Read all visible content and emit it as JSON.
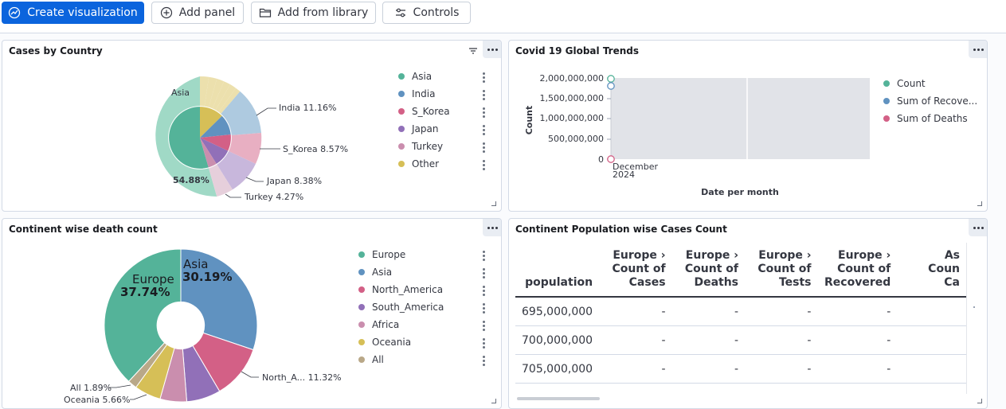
{
  "toolbar": {
    "create_label": "Create visualization",
    "add_panel_label": "Add panel",
    "add_library_label": "Add from library",
    "controls_label": "Controls"
  },
  "panels": {
    "cases_by_country": {
      "title": "Cases by Country",
      "center_label": "Asia",
      "center_pct": "54.88%",
      "callouts": {
        "india": "India  11.16%",
        "skorea": "S_Korea  8.57%",
        "japan": "Japan  8.38%",
        "turkey": "Turkey  4.27%"
      },
      "legend": [
        {
          "label": "Asia",
          "color": "#54b399"
        },
        {
          "label": "India",
          "color": "#6092c0"
        },
        {
          "label": "S_Korea",
          "color": "#d36086"
        },
        {
          "label": "Japan",
          "color": "#9170b8"
        },
        {
          "label": "Turkey",
          "color": "#ca8eae"
        },
        {
          "label": "Other",
          "color": "#d6bf57"
        }
      ]
    },
    "covid_trends": {
      "title": "Covid 19 Global Trends",
      "ylabel": "Count",
      "xlabel": "Date per month",
      "yticks": [
        "2,000,000,000",
        "1,500,000,000",
        "1,000,000,000",
        "500,000,000",
        "0"
      ],
      "xtick_line1": "December",
      "xtick_line2": "2024",
      "legend": [
        {
          "label": "Count",
          "color": "#54b399"
        },
        {
          "label": "Sum of Recove...",
          "color": "#6092c0"
        },
        {
          "label": "Sum of Deaths",
          "color": "#d36086"
        }
      ]
    },
    "continent_deaths": {
      "title": "Continent wise death count",
      "europe_label": "Europe",
      "europe_pct": "37.74%",
      "asia_label": "Asia",
      "asia_pct": "30.19%",
      "callouts": {
        "north_america": "North_A...  11.32%",
        "all": "All  1.89%",
        "oceania": "Oceania  5.66%"
      },
      "legend": [
        {
          "label": "Europe",
          "color": "#54b399"
        },
        {
          "label": "Asia",
          "color": "#6092c0"
        },
        {
          "label": "North_America",
          "color": "#d36086"
        },
        {
          "label": "South_America",
          "color": "#9170b8"
        },
        {
          "label": "Africa",
          "color": "#ca8eae"
        },
        {
          "label": "Oceania",
          "color": "#d6bf57"
        },
        {
          "label": "All",
          "color": "#b9a888"
        }
      ]
    },
    "population_table": {
      "title": "Continent Population wise Cases Count",
      "headers": [
        {
          "l1": "",
          "l2": "",
          "l3": "population"
        },
        {
          "l1": "Europe ›",
          "l2": "Count of",
          "l3": "Cases"
        },
        {
          "l1": "Europe ›",
          "l2": "Count of",
          "l3": "Deaths"
        },
        {
          "l1": "Europe ›",
          "l2": "Count of",
          "l3": "Tests"
        },
        {
          "l1": "Europe ›",
          "l2": "Count of",
          "l3": "Recovered"
        },
        {
          "l1": "As",
          "l2": "Coun",
          "l3": "Ca"
        }
      ],
      "rows": [
        [
          "695,000,000",
          "-",
          "-",
          "-",
          "-",
          ""
        ],
        [
          "700,000,000",
          "-",
          "-",
          "-",
          "-",
          ""
        ],
        [
          "705,000,000",
          "-",
          "-",
          "-",
          "-",
          ""
        ]
      ]
    }
  }
}
